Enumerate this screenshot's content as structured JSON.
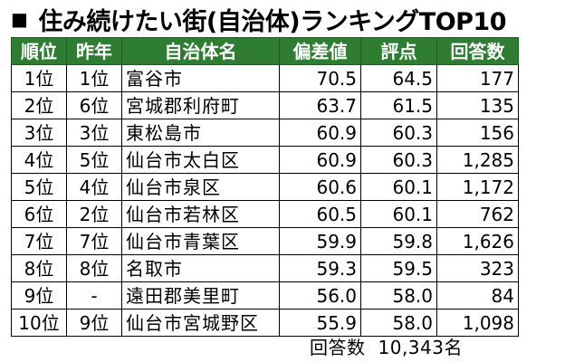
{
  "title": {
    "bullet": "■",
    "text": "住み続けたい街(自治体)ランキングTOP10"
  },
  "table": {
    "headers": [
      "順位",
      "昨年",
      "自治体名",
      "偏差値",
      "評点",
      "回答数"
    ],
    "rows": [
      {
        "rank": "1位",
        "prev": "1位",
        "name": "富谷市",
        "deviation": "70.5",
        "score": "64.5",
        "responses": "177"
      },
      {
        "rank": "2位",
        "prev": "6位",
        "name": "宮城郡利府町",
        "deviation": "63.7",
        "score": "61.5",
        "responses": "135"
      },
      {
        "rank": "3位",
        "prev": "3位",
        "name": "東松島市",
        "deviation": "60.9",
        "score": "60.3",
        "responses": "156"
      },
      {
        "rank": "4位",
        "prev": "5位",
        "name": "仙台市太白区",
        "deviation": "60.9",
        "score": "60.3",
        "responses": "1,285"
      },
      {
        "rank": "5位",
        "prev": "4位",
        "name": "仙台市泉区",
        "deviation": "60.6",
        "score": "60.1",
        "responses": "1,172"
      },
      {
        "rank": "6位",
        "prev": "2位",
        "name": "仙台市若林区",
        "deviation": "60.5",
        "score": "60.1",
        "responses": "762"
      },
      {
        "rank": "7位",
        "prev": "7位",
        "name": "仙台市青葉区",
        "deviation": "59.9",
        "score": "59.8",
        "responses": "1,626"
      },
      {
        "rank": "8位",
        "prev": "8位",
        "name": "名取市",
        "deviation": "59.3",
        "score": "59.5",
        "responses": "323"
      },
      {
        "rank": "9位",
        "prev": "-",
        "name": "遠田郡美里町",
        "deviation": "56.0",
        "score": "58.0",
        "responses": "84"
      },
      {
        "rank": "10位",
        "prev": "9位",
        "name": "仙台市宮城野区",
        "deviation": "55.9",
        "score": "58.0",
        "responses": "1,098"
      }
    ]
  },
  "footer": {
    "label": "回答数",
    "count": "10,343名"
  },
  "colors": {
    "header_bg": "#2e7d32",
    "header_text": "#ffffff",
    "border": "#000000"
  }
}
